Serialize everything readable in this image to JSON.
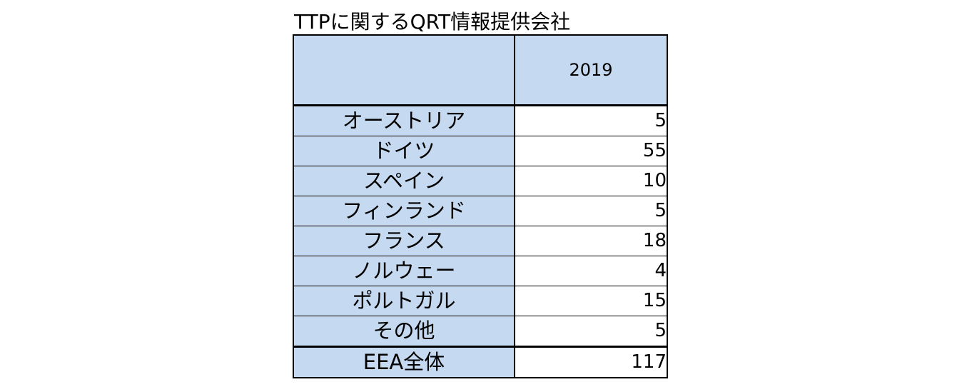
{
  "title": "TTPに関するQRT情報提供会社",
  "header": {
    "corner": "",
    "year": "2019"
  },
  "rows": [
    {
      "country": "オーストリア",
      "value": "5"
    },
    {
      "country": "ドイツ",
      "value": "55"
    },
    {
      "country": "スペイン",
      "value": "10"
    },
    {
      "country": "フィンランド",
      "value": "5"
    },
    {
      "country": "フランス",
      "value": "18"
    },
    {
      "country": "ノルウェー",
      "value": "4"
    },
    {
      "country": "ポルトガル",
      "value": "15"
    },
    {
      "country": "その他",
      "value": "5"
    }
  ],
  "total": {
    "label": "EEA全体",
    "value": "117"
  }
}
